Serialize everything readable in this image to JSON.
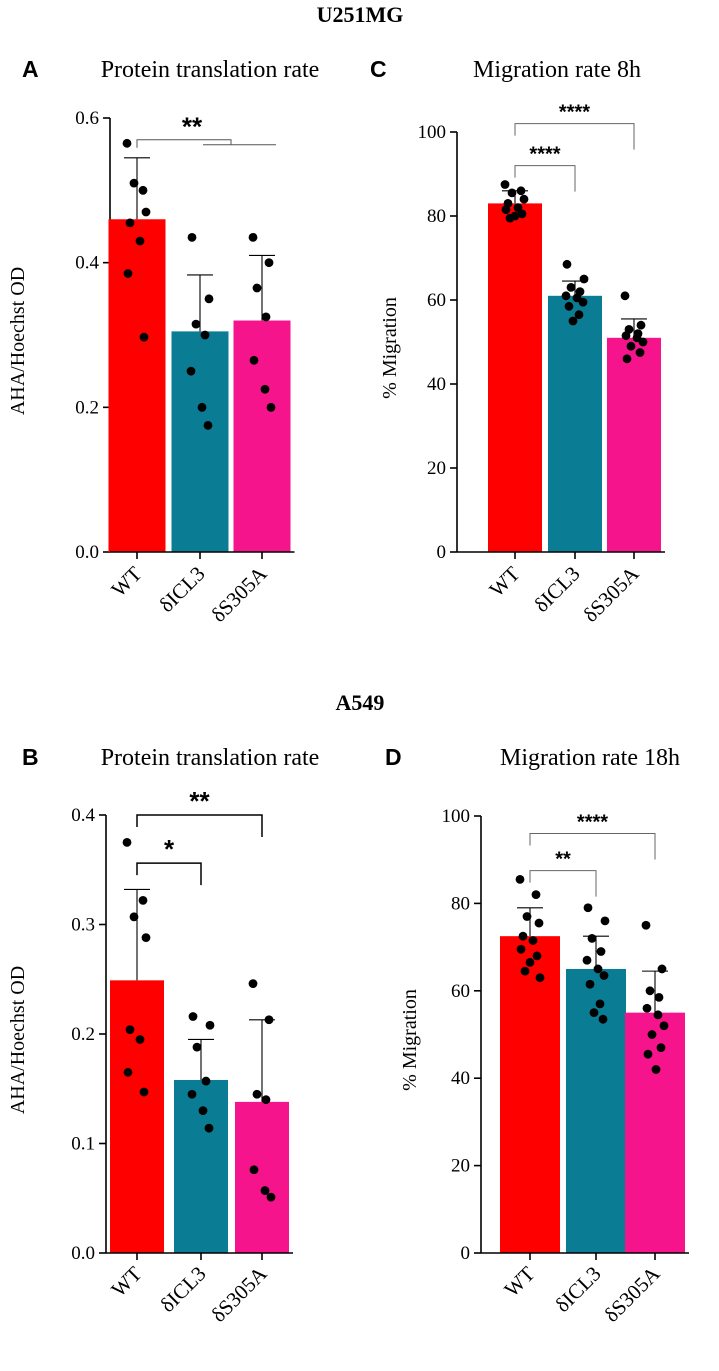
{
  "figure": {
    "row_titles": [
      "U251MG",
      "A549"
    ]
  },
  "chart_data": [
    {
      "panel": "A",
      "type": "bar",
      "title": "Protein translation rate",
      "xlabel": "",
      "ylabel": "AHA/Hoechst OD",
      "ylim": [
        0,
        0.6
      ],
      "yticks": [
        0.0,
        0.2,
        0.4,
        0.6
      ],
      "ytick_labels": [
        "0.0",
        "0.2",
        "0.4",
        "0.6"
      ],
      "categories": [
        "WT",
        "δICL3",
        "δS305A"
      ],
      "colors": [
        "#ff0000",
        "#0a7d94",
        "#f5148c"
      ],
      "values": [
        0.46,
        0.305,
        0.32
      ],
      "errors": [
        0.085,
        0.078,
        0.09
      ],
      "points": [
        [
          0.565,
          0.5,
          0.51,
          0.47,
          0.455,
          0.43,
          0.385,
          0.297
        ],
        [
          0.435,
          0.35,
          0.315,
          0.3,
          0.25,
          0.2,
          0.175
        ],
        [
          0.435,
          0.4,
          0.365,
          0.325,
          0.265,
          0.225,
          0.2
        ]
      ],
      "significance": [
        {
          "label": "**",
          "style": "bracket",
          "value": 0.57
        }
      ]
    },
    {
      "panel": "C",
      "type": "bar",
      "title": "Migration rate 8h",
      "xlabel": "",
      "ylabel": "% Migration",
      "ylim": [
        0,
        100
      ],
      "yticks": [
        0,
        20,
        40,
        60,
        80,
        100
      ],
      "ytick_labels": [
        "0",
        "20",
        "40",
        "60",
        "80",
        "100"
      ],
      "categories": [
        "WT",
        "δICL3",
        "δS305A"
      ],
      "colors": [
        "#ff0000",
        "#0a7d94",
        "#f5148c"
      ],
      "values": [
        83,
        61,
        51
      ],
      "errors": [
        3.0,
        3.5,
        4.5
      ],
      "points": [
        [
          87.5,
          86,
          85.5,
          84,
          83,
          82,
          81.5,
          80.5,
          80,
          79.5
        ],
        [
          68.5,
          65,
          63,
          62,
          61,
          60.5,
          59.5,
          58.5,
          56.5,
          55
        ],
        [
          61,
          54,
          53,
          52,
          51.5,
          51,
          50,
          49,
          47.5,
          46
        ]
      ],
      "significance": [
        {
          "label": "****",
          "from": 0,
          "to": 1,
          "value": 92
        },
        {
          "label": "****",
          "from": 0,
          "to": 2,
          "value": 102
        }
      ]
    },
    {
      "panel": "B",
      "type": "bar",
      "title": "Protein translation rate",
      "xlabel": "",
      "ylabel": "AHA/Hoechst OD",
      "ylim": [
        0,
        0.4
      ],
      "yticks": [
        0.0,
        0.1,
        0.2,
        0.3,
        0.4
      ],
      "ytick_labels": [
        "0.0",
        "0.1",
        "0.2",
        "0.3",
        "0.4"
      ],
      "categories": [
        "WT",
        "δICL3",
        "δS305A"
      ],
      "colors": [
        "#ff0000",
        "#0a7d94",
        "#f5148c"
      ],
      "values": [
        0.249,
        0.158,
        0.138
      ],
      "errors": [
        0.083,
        0.037,
        0.075
      ],
      "points": [
        [
          0.375,
          0.322,
          0.307,
          0.288,
          0.204,
          0.195,
          0.165,
          0.147
        ],
        [
          0.216,
          0.208,
          0.188,
          0.157,
          0.145,
          0.13,
          0.114
        ],
        [
          0.246,
          0.213,
          0.145,
          0.14,
          0.076,
          0.057,
          0.051
        ]
      ],
      "significance": [
        {
          "label": "*",
          "from": 0,
          "to": 1,
          "value": 0.356
        },
        {
          "label": "**",
          "from": 0,
          "to": 2,
          "value": 0.4
        }
      ]
    },
    {
      "panel": "D",
      "type": "bar",
      "title": "Migration rate 18h",
      "xlabel": "",
      "ylabel": "% Migration",
      "ylim": [
        0,
        100
      ],
      "yticks": [
        0,
        20,
        40,
        60,
        80,
        100
      ],
      "ytick_labels": [
        "0",
        "20",
        "40",
        "60",
        "80",
        "100"
      ],
      "categories": [
        "WT",
        "δICL3",
        "δS305A"
      ],
      "colors": [
        "#ff0000",
        "#0a7d94",
        "#f5148c"
      ],
      "values": [
        72.5,
        65,
        55
      ],
      "errors": [
        6.5,
        7.5,
        9.5
      ],
      "points": [
        [
          85.5,
          82,
          77,
          75.5,
          72.5,
          71.5,
          69.5,
          68,
          66.5,
          64.5,
          63
        ],
        [
          79,
          76,
          72,
          69,
          67,
          65,
          63.5,
          61.5,
          57,
          55,
          53.5
        ],
        [
          75,
          65,
          60,
          58.5,
          56,
          54.5,
          52,
          50,
          47,
          45.5,
          42
        ]
      ],
      "significance": [
        {
          "label": "**",
          "from": 0,
          "to": 1,
          "value": 87.5
        },
        {
          "label": "****",
          "from": 0,
          "to": 2,
          "value": 96
        }
      ]
    }
  ]
}
